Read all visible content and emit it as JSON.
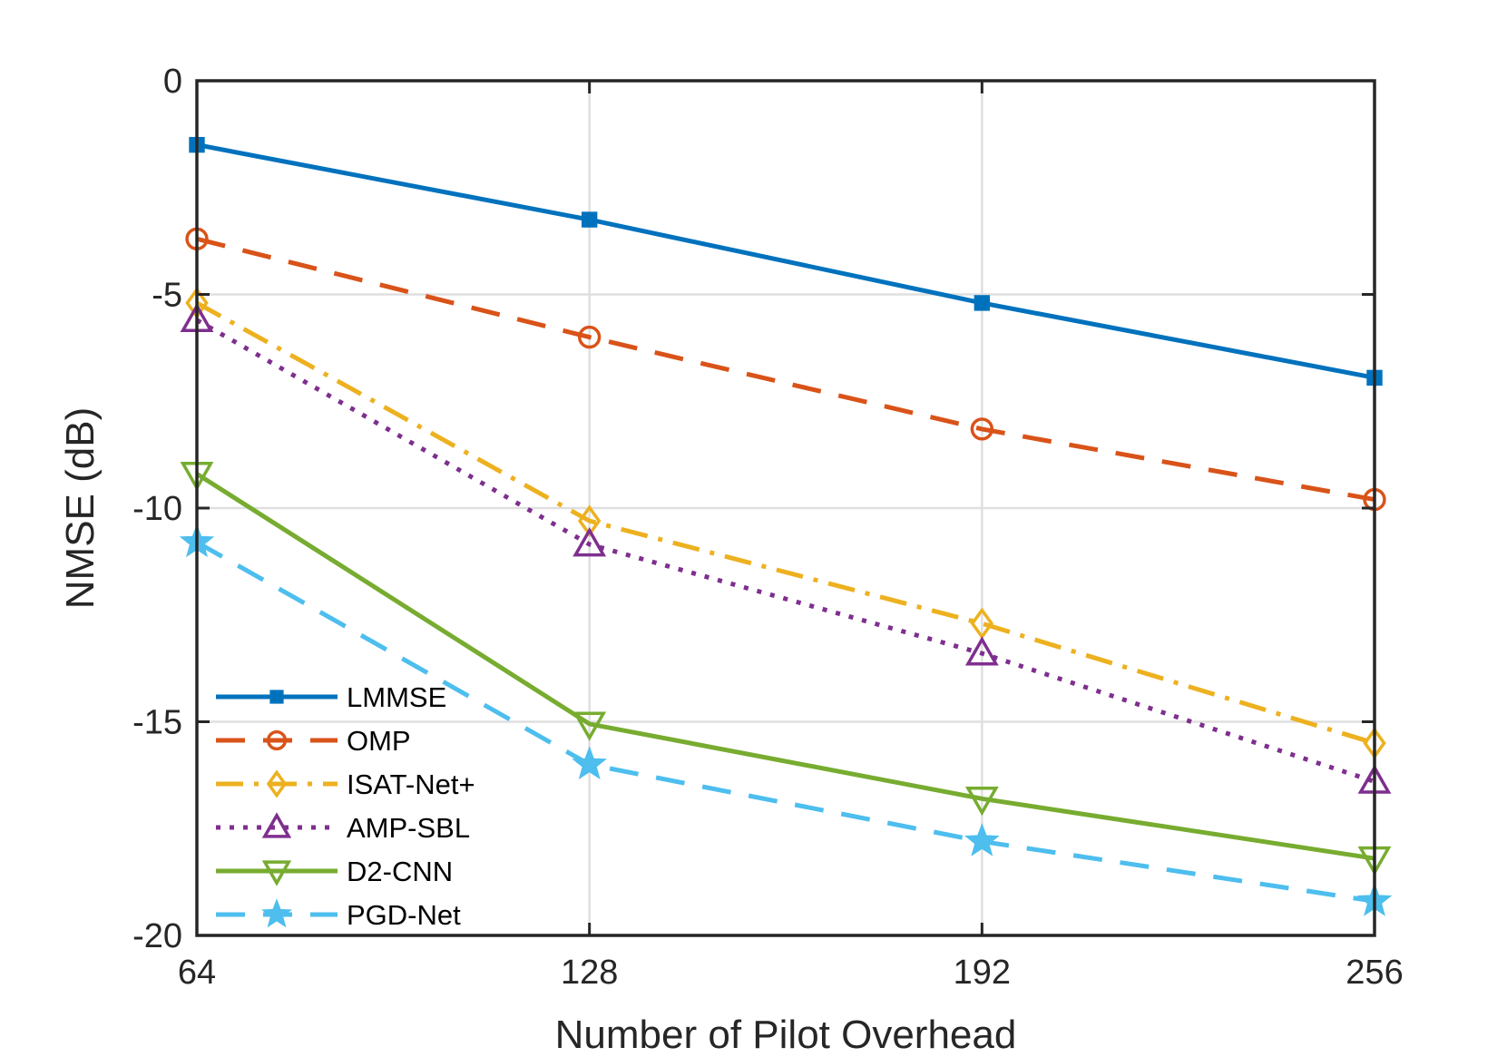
{
  "chart_data": {
    "type": "line",
    "title": "",
    "xlabel": "Number of Pilot Overhead",
    "ylabel": "NMSE (dB)",
    "x": [
      64,
      128,
      192,
      256
    ],
    "xticks": [
      "64",
      "128",
      "192",
      "256"
    ],
    "yticks": [
      "0",
      "-5",
      "-10",
      "-15",
      "-20"
    ],
    "xlim": [
      64,
      256
    ],
    "ylim": [
      -20,
      0
    ],
    "grid": true,
    "legend_position": "bottom-left",
    "series": [
      {
        "name": "LMMSE",
        "values": [
          -1.5,
          -3.25,
          -5.2,
          -6.95
        ],
        "color": "#0072BD",
        "dash": "solid",
        "marker": "square"
      },
      {
        "name": "OMP",
        "values": [
          -3.7,
          -6.0,
          -8.15,
          -9.8
        ],
        "color": "#D95319",
        "dash": "dashed",
        "marker": "circle"
      },
      {
        "name": "ISAT-Net+",
        "values": [
          -5.2,
          -10.3,
          -12.7,
          -15.5
        ],
        "color": "#EDB120",
        "dash": "dashdot",
        "marker": "diamond"
      },
      {
        "name": "AMP-SBL",
        "values": [
          -5.6,
          -10.85,
          -13.4,
          -16.4
        ],
        "color": "#7E2F8E",
        "dash": "dotted",
        "marker": "triangle-up"
      },
      {
        "name": "D2-CNN",
        "values": [
          -9.2,
          -15.05,
          -16.8,
          -18.2
        ],
        "color": "#77AC30",
        "dash": "solid",
        "marker": "triangle-down"
      },
      {
        "name": "PGD-Net",
        "values": [
          -10.8,
          -16.0,
          -17.8,
          -19.2
        ],
        "color": "#4DBEEE",
        "dash": "dashed",
        "marker": "star"
      }
    ]
  }
}
